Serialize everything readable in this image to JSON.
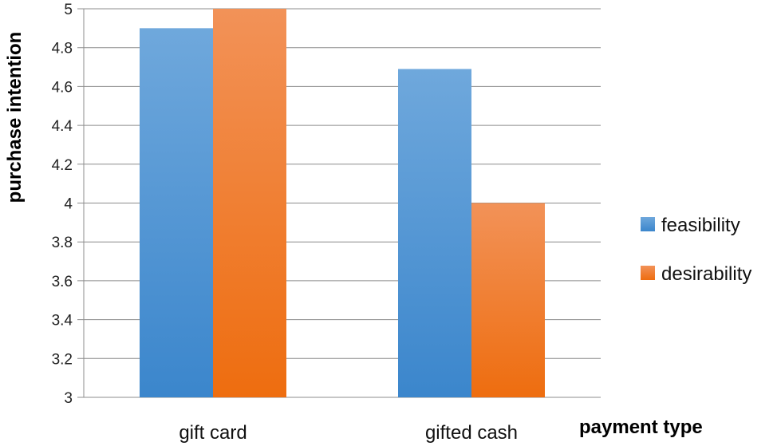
{
  "chart_data": {
    "type": "bar",
    "title": "",
    "xlabel": "payment type",
    "ylabel": "purchase intention",
    "categories": [
      "gift card",
      "gifted cash"
    ],
    "series": [
      {
        "name": "feasibility",
        "values": [
          4.9,
          4.69
        ],
        "color": "#4a90d4"
      },
      {
        "name": "desirability",
        "values": [
          5.0,
          4.0
        ],
        "color": "#f07d28"
      }
    ],
    "ylim": [
      3,
      5
    ],
    "yticks": [
      "3",
      "3.2",
      "3.4",
      "3.6",
      "3.8",
      "4",
      "4.2",
      "4.4",
      "4.6",
      "4.8",
      "5"
    ],
    "grid": true,
    "legend": "right"
  }
}
